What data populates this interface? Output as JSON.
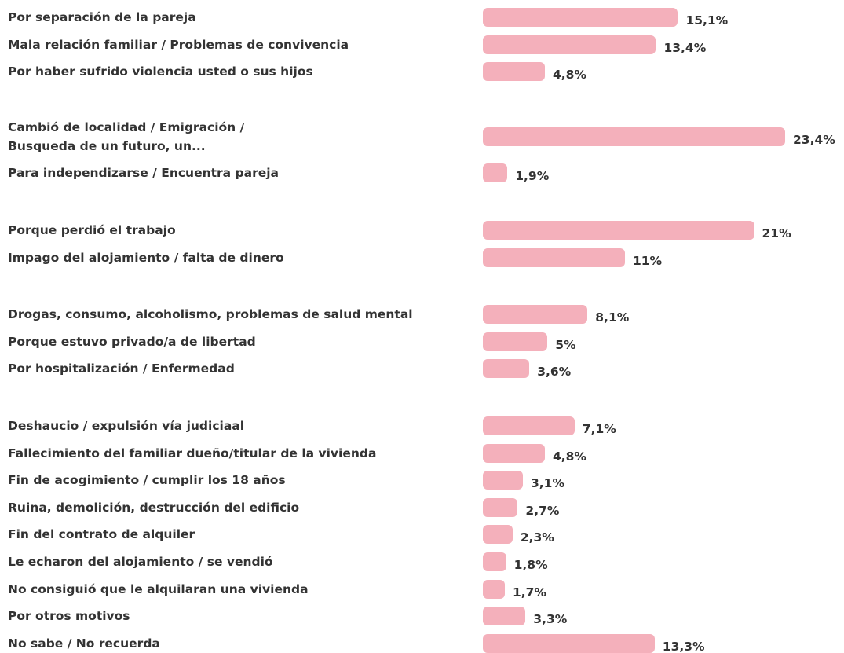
{
  "chart_data": {
    "type": "bar",
    "orientation": "horizontal",
    "color": "#f4b0bb",
    "groups": [
      {
        "categories": [
          "Por separación de la pareja",
          "Mala relación familiar / Problemas de convivencia",
          "Por haber sufrido violencia usted o sus hijos"
        ],
        "values": [
          15.1,
          13.4,
          4.8
        ],
        "value_labels": [
          "15,1%",
          "13,4%",
          "4,8%"
        ]
      },
      {
        "categories": [
          "Cambió de localidad / Emigración /\nBusqueda de un futuro, un...",
          "Para independizarse / Encuentra pareja"
        ],
        "values": [
          23.4,
          1.9
        ],
        "value_labels": [
          "23,4%",
          "1,9%"
        ]
      },
      {
        "categories": [
          "Porque perdió el trabajo",
          "Impago del alojamiento / falta de dinero"
        ],
        "values": [
          21,
          11
        ],
        "value_labels": [
          "21%",
          "11%"
        ]
      },
      {
        "categories": [
          "Drogas, consumo, alcoholismo, problemas de salud mental",
          "Porque estuvo privado/a de libertad",
          "Por hospitalización / Enfermedad"
        ],
        "values": [
          8.1,
          5,
          3.6
        ],
        "value_labels": [
          "8,1%",
          "5%",
          "3,6%"
        ]
      },
      {
        "categories": [
          "Deshaucio / expulsión vía judiciaal",
          "Fallecimiento del familiar dueño/titular de la vivienda",
          "Fin de acogimiento / cumplir los 18 años",
          "Ruina, demolición, destrucción del edificio",
          "Fin del contrato de alquiler",
          "Le echaron del alojamiento / se vendió",
          "No consiguió que le alquilaran una vivienda",
          "Por otros motivos",
          "No sabe / No recuerda"
        ],
        "values": [
          7.1,
          4.8,
          3.1,
          2.7,
          2.3,
          1.8,
          1.7,
          3.3,
          13.3
        ],
        "value_labels": [
          "7,1%",
          "4,8%",
          "3,1%",
          "2,7%",
          "2,3%",
          "1,8%",
          "1,7%",
          "3,3%",
          "13,3%"
        ]
      }
    ]
  }
}
